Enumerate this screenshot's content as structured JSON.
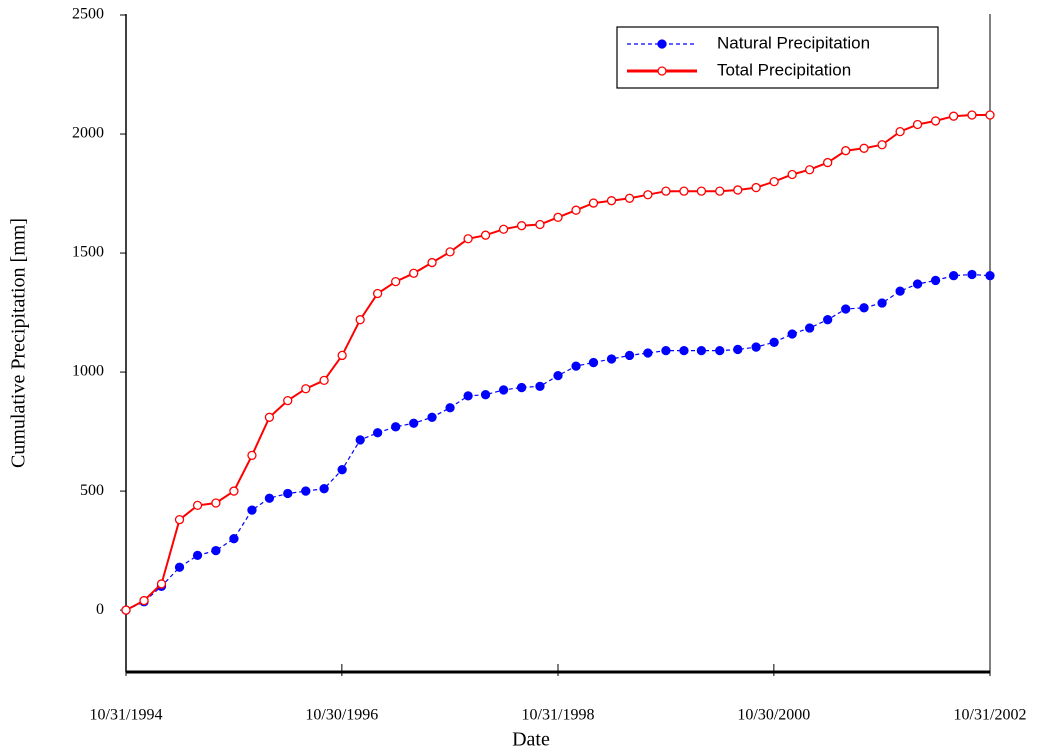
{
  "chart_data": {
    "type": "line",
    "x_label": "Date",
    "y_label": "Cumulative Precipitation [mm]",
    "x": [
      "10/31/1994",
      "12/31/1994",
      "02/28/1995",
      "04/30/1995",
      "06/30/1995",
      "08/31/1995",
      "10/31/1995",
      "12/31/1995",
      "02/28/1996",
      "04/30/1996",
      "06/30/1996",
      "08/31/1996",
      "10/31/1996",
      "12/31/1996",
      "02/28/1997",
      "04/30/1997",
      "06/30/1997",
      "08/31/1997",
      "10/31/1997",
      "12/31/1997",
      "02/28/1998",
      "04/30/1998",
      "06/30/1998",
      "08/31/1998",
      "10/31/1998",
      "12/31/1998",
      "02/28/1999",
      "04/30/1999",
      "06/30/1999",
      "08/31/1999",
      "10/31/1999",
      "12/31/1999",
      "02/28/2000",
      "04/30/2000",
      "06/30/2000",
      "08/31/2000",
      "10/31/2000",
      "12/31/2000",
      "02/28/2001",
      "04/30/2001",
      "06/30/2001",
      "08/31/2001",
      "10/31/2001",
      "12/31/2001",
      "02/28/2002",
      "04/30/2002",
      "06/30/2002",
      "08/31/2002",
      "10/31/2002"
    ],
    "series": [
      {
        "name": "Natural Precipitation",
        "color": "#0000ff",
        "line_style": "dashed",
        "marker": "filled",
        "values": [
          0,
          35,
          100,
          180,
          230,
          250,
          300,
          420,
          470,
          490,
          500,
          510,
          590,
          715,
          745,
          770,
          785,
          810,
          850,
          900,
          905,
          925,
          935,
          940,
          985,
          1025,
          1040,
          1055,
          1070,
          1080,
          1090,
          1090,
          1090,
          1090,
          1095,
          1105,
          1125,
          1160,
          1185,
          1220,
          1265,
          1270,
          1290,
          1340,
          1370,
          1385,
          1405,
          1410,
          1405
        ]
      },
      {
        "name": "Total Precipitation",
        "color": "#ff0000",
        "line_style": "solid",
        "marker": "open",
        "values": [
          0,
          40,
          110,
          380,
          440,
          450,
          500,
          650,
          810,
          880,
          930,
          965,
          1070,
          1220,
          1330,
          1380,
          1415,
          1460,
          1505,
          1560,
          1575,
          1600,
          1615,
          1620,
          1650,
          1680,
          1710,
          1720,
          1730,
          1745,
          1760,
          1760,
          1760,
          1760,
          1765,
          1775,
          1800,
          1830,
          1850,
          1880,
          1930,
          1940,
          1955,
          2010,
          2040,
          2055,
          2075,
          2080,
          2080
        ]
      }
    ],
    "xlim": [
      "10/31/1994",
      "10/31/2002"
    ],
    "xticks": [
      "10/31/1994",
      "10/30/1996",
      "10/31/1998",
      "10/30/2000",
      "10/31/2002"
    ],
    "ylim": [
      -260,
      2500
    ],
    "yticks": [
      0,
      500,
      1000,
      1500,
      2000,
      2500
    ],
    "legend": "upper right",
    "grid": false
  }
}
